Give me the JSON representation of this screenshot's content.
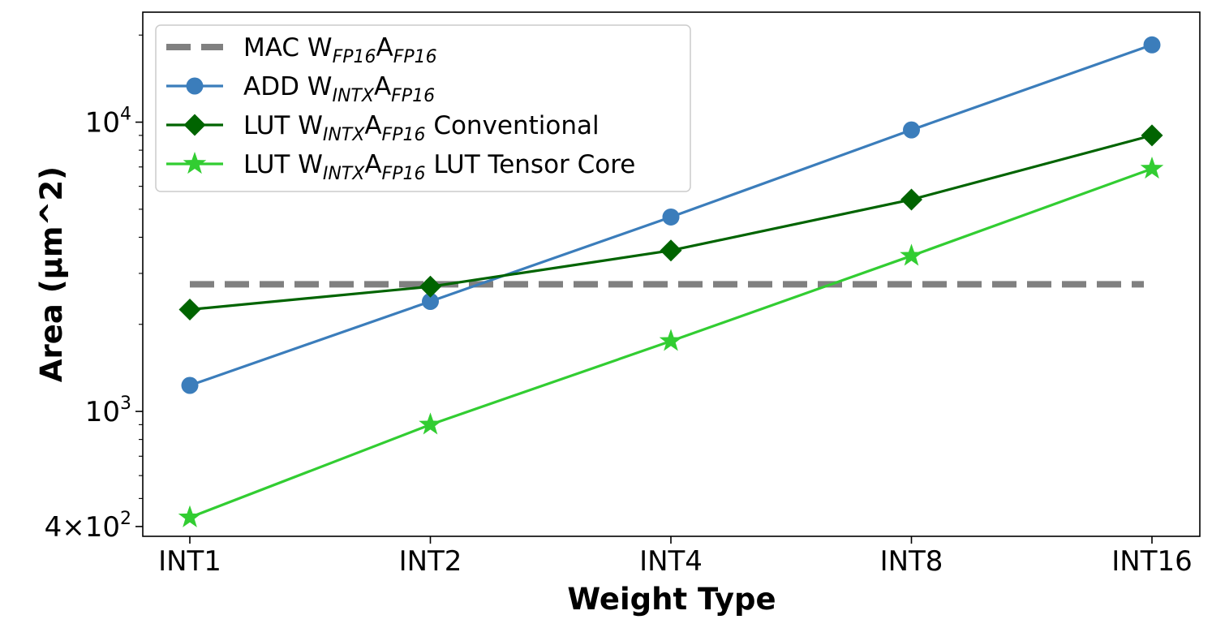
{
  "chart_data": {
    "type": "line",
    "xlabel": "Weight Type",
    "ylabel": "Area (µm^2)",
    "yscale": "log",
    "ylim": [
      370,
      24000
    ],
    "categories": [
      "INT1",
      "INT2",
      "INT4",
      "INT8",
      "INT16"
    ],
    "yticks": [
      {
        "value": 10000,
        "base": "10",
        "exp": "4"
      },
      {
        "value": 1000,
        "base": "10",
        "exp": "3"
      },
      {
        "value": 400,
        "coef": "4",
        "times": "×",
        "base": "10",
        "exp": "2"
      }
    ],
    "grid": false,
    "legend_position": "top-left",
    "series": [
      {
        "key": "mac",
        "name": "MAC W",
        "sub1": "FP16",
        "mid": "A",
        "sub2": "FP16",
        "tail": "",
        "color": "#808080",
        "style": "dashed",
        "marker": "none",
        "values": [
          2750,
          2750,
          2750,
          2750,
          2750
        ]
      },
      {
        "key": "add",
        "name": "ADD W",
        "sub1": "INTX",
        "mid": "A",
        "sub2": "FP16",
        "tail": "",
        "color": "#3b7dbb",
        "style": "solid",
        "marker": "circle",
        "values": [
          1230,
          2400,
          4700,
          9400,
          18500
        ]
      },
      {
        "key": "lut-conv",
        "name": "LUT W",
        "sub1": "INTX",
        "mid": "A",
        "sub2": "FP16",
        "tail": " Conventional",
        "color": "#006400",
        "style": "solid",
        "marker": "diamond",
        "values": [
          2250,
          2700,
          3600,
          5400,
          9000
        ]
      },
      {
        "key": "lut-tc",
        "name": "LUT W",
        "sub1": "INTX",
        "mid": "A",
        "sub2": "FP16",
        "tail": " LUT Tensor Core",
        "color": "#32cd32",
        "style": "solid",
        "marker": "star",
        "values": [
          430,
          900,
          1750,
          3450,
          6900
        ]
      }
    ]
  }
}
